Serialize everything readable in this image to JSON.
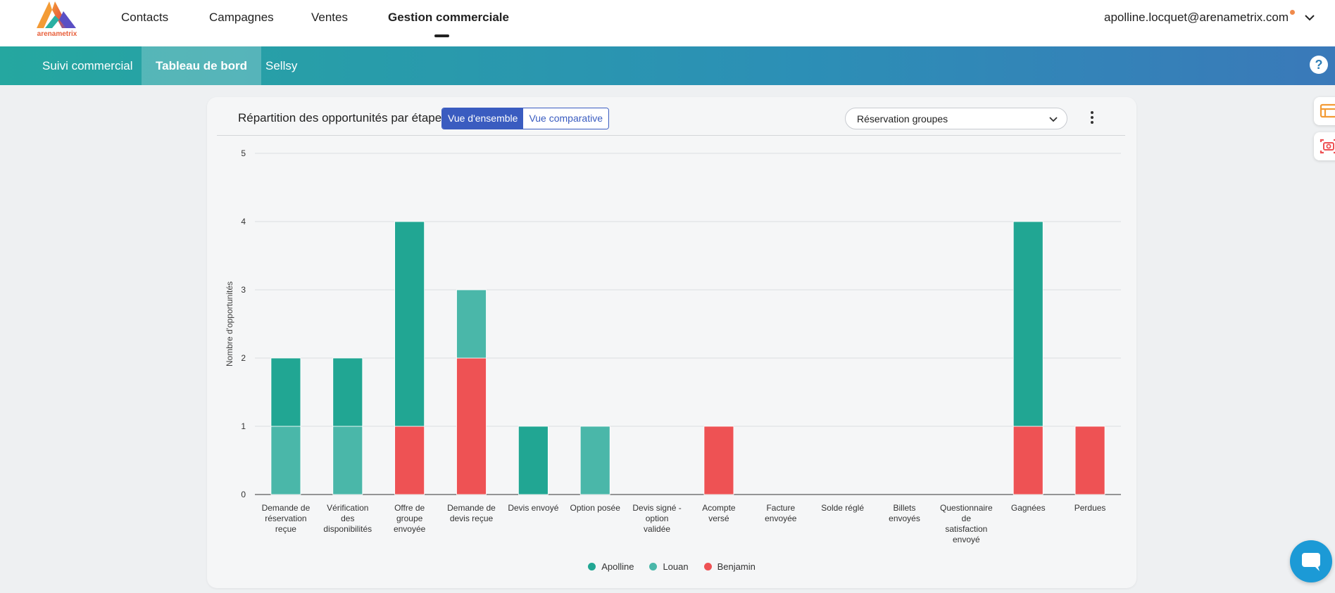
{
  "brand": {
    "logo_text": "arenametrix"
  },
  "topnav": {
    "items": [
      {
        "label": "Contacts"
      },
      {
        "label": "Campagnes"
      },
      {
        "label": "Ventes"
      },
      {
        "label": "Gestion commerciale",
        "active": true
      }
    ],
    "user_email": "apolline.locquet@arenametrix.com"
  },
  "subnav": {
    "items": [
      {
        "label": "Suivi commercial"
      },
      {
        "label": "Tableau de bord",
        "active": true
      },
      {
        "label": "Sellsy"
      }
    ],
    "help_label": "?"
  },
  "card": {
    "title": "Répartition des opportunités par étape",
    "toggle": {
      "overview": "Vue d'ensemble",
      "compare": "Vue comparative",
      "selected": "overview"
    },
    "select_value": "Réservation groupes"
  },
  "colors": {
    "apolline": "#21a693",
    "louan": "#4ab7a9",
    "benjamin": "#ee5254",
    "accent": "#3a5cc0"
  },
  "chart_data": {
    "type": "bar",
    "stacked": true,
    "ylabel": "Nombre d'opportunités",
    "ylim": [
      0,
      5
    ],
    "yticks": [
      0,
      1,
      2,
      3,
      4,
      5
    ],
    "categories": [
      [
        "Demande de",
        "réservation",
        "reçue"
      ],
      [
        "Vérification",
        "des",
        "disponibilités"
      ],
      [
        "Offre de",
        "groupe",
        "envoyée"
      ],
      [
        "Demande de",
        "devis reçue"
      ],
      [
        "Devis envoyé"
      ],
      [
        "Option posée"
      ],
      [
        "Devis signé -",
        "option",
        "validée"
      ],
      [
        "Acompte",
        "versé"
      ],
      [
        "Facture",
        "envoyée"
      ],
      [
        "Solde réglé"
      ],
      [
        "Billets",
        "envoyés"
      ],
      [
        "Questionnaire",
        "de",
        "satisfaction",
        "envoyé"
      ],
      [
        "Gagnées"
      ],
      [
        "Perdues"
      ]
    ],
    "series": [
      {
        "name": "Benjamin",
        "color": "#ee5254",
        "values": [
          0,
          0,
          1,
          2,
          0,
          0,
          0,
          1,
          0,
          0,
          0,
          0,
          1,
          1
        ]
      },
      {
        "name": "Louan",
        "color": "#4ab7a9",
        "values": [
          1,
          1,
          0,
          1,
          0,
          1,
          0,
          0,
          0,
          0,
          0,
          0,
          0,
          0
        ]
      },
      {
        "name": "Apolline",
        "color": "#21a693",
        "values": [
          1,
          1,
          3,
          0,
          1,
          0,
          0,
          0,
          0,
          0,
          0,
          0,
          3,
          0
        ]
      }
    ],
    "legend": [
      "Apolline",
      "Louan",
      "Benjamin"
    ],
    "legend_position": "bottom",
    "grid": true
  }
}
